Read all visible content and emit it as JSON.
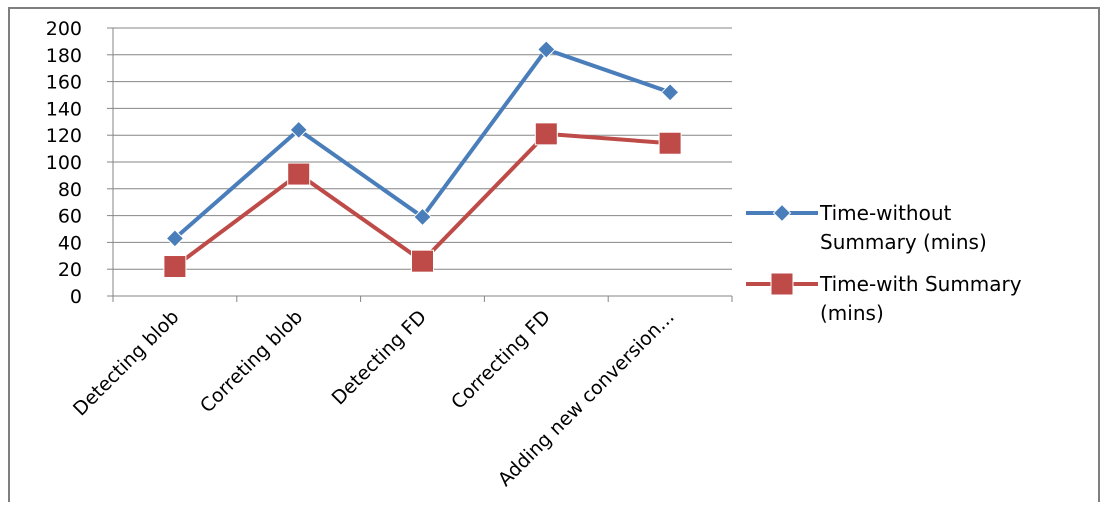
{
  "chart_data": {
    "type": "line",
    "categories": [
      "Detecting blob",
      "Correting blob",
      "Detecting FD",
      "Correcting FD",
      "Adding new conversion..."
    ],
    "series": [
      {
        "name": "Time-without Summary (mins)",
        "values": [
          43,
          124,
          59,
          184,
          152
        ],
        "color": "#4a7ebb",
        "marker": "diamond"
      },
      {
        "name": "Time-with Summary (mins)",
        "values": [
          22,
          91,
          26,
          121,
          114
        ],
        "color": "#be4b48",
        "marker": "square"
      }
    ],
    "ylim": [
      0,
      200
    ],
    "yticks": [
      0,
      20,
      40,
      60,
      80,
      100,
      120,
      140,
      160,
      180,
      200
    ],
    "grid": true,
    "legend_position": "right",
    "legend_lines": [
      [
        "Time-without",
        "Summary (mins)"
      ],
      [
        "Time-with Summary",
        "(mins)"
      ]
    ],
    "colors": {
      "grid": "#868686",
      "axis": "#868686",
      "frame": "#7f7f7f"
    }
  }
}
